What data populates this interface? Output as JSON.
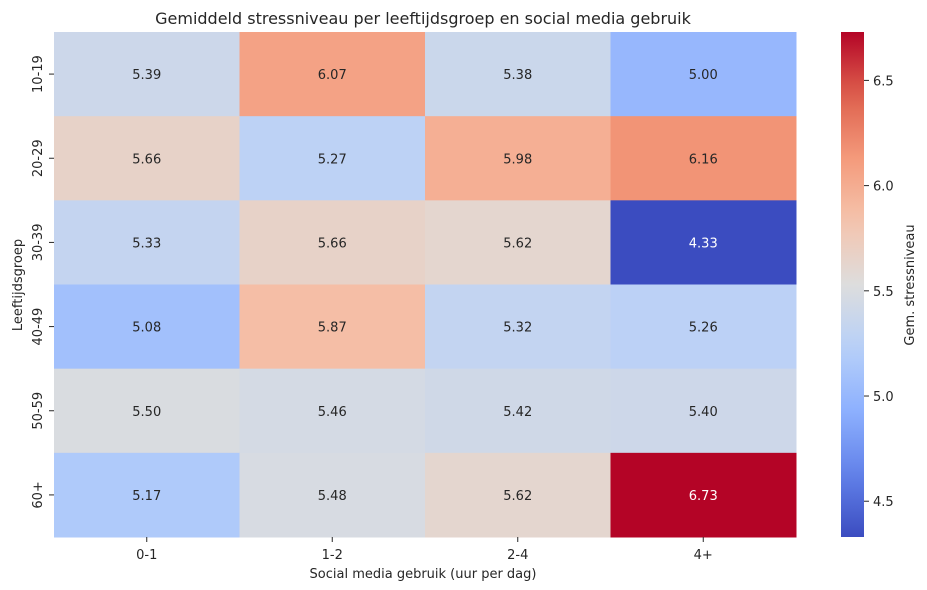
{
  "chart_data": {
    "type": "heatmap",
    "title": "Gemiddeld stressniveau per leeftijdsgroep en social media gebruik",
    "xlabel": "Social media gebruik (uur per dag)",
    "ylabel": "Leeftijdsgroep",
    "x_categories": [
      "0-1",
      "1-2",
      "2-4",
      "4+"
    ],
    "y_categories": [
      "10-19",
      "20-29",
      "30-39",
      "40-49",
      "50-59",
      "60+"
    ],
    "values": [
      [
        5.39,
        6.07,
        5.38,
        5.0
      ],
      [
        5.66,
        5.27,
        5.98,
        6.16
      ],
      [
        5.33,
        5.66,
        5.62,
        4.33
      ],
      [
        5.08,
        5.87,
        5.32,
        5.26
      ],
      [
        5.5,
        5.46,
        5.42,
        5.4
      ],
      [
        5.17,
        5.48,
        5.62,
        6.73
      ]
    ],
    "annotations": [
      [
        "5.39",
        "6.07",
        "5.38",
        "5.00"
      ],
      [
        "5.66",
        "5.27",
        "5.98",
        "6.16"
      ],
      [
        "5.33",
        "5.66",
        "5.62",
        "4.33"
      ],
      [
        "5.08",
        "5.87",
        "5.32",
        "5.26"
      ],
      [
        "5.50",
        "5.46",
        "5.42",
        "5.40"
      ],
      [
        "5.17",
        "5.48",
        "5.62",
        "6.73"
      ]
    ],
    "colorbar": {
      "label": "Gem. stressniveau",
      "colormap": "coolwarm",
      "vmin": 4.33,
      "vmax": 6.73,
      "ticks": [
        4.5,
        5.0,
        5.5,
        6.0,
        6.5
      ],
      "tick_labels": [
        "4.5",
        "5.0",
        "5.5",
        "6.0",
        "6.5"
      ]
    },
    "grid": false
  }
}
